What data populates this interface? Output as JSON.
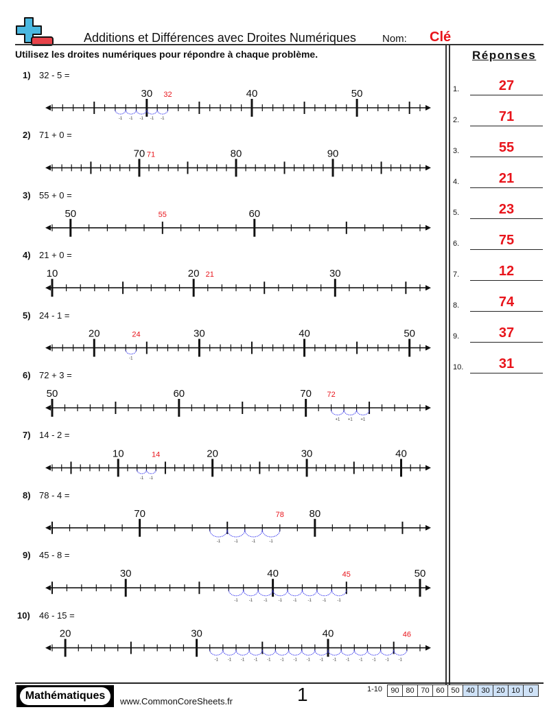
{
  "header": {
    "title": "Additions et Différences avec Droites Numériques",
    "name_label": "Nom:",
    "name_value": "Clé",
    "logo_icon": "plus-minus-logo-icon",
    "logo_colors": {
      "plus": "#4ab8e0",
      "minus": "#e8434a"
    }
  },
  "instructions": "Utilisez les droites numériques pour répondre à chaque problème.",
  "answers_title": "Réponses",
  "answer_color": "#e8141b",
  "jump_color": "#3a3af0",
  "problems": [
    {
      "num": "1)",
      "expr": "32 - 5 =",
      "min": 21,
      "max": 56,
      "start": 32,
      "jumps": -5,
      "start_label": "32",
      "jump_label": "-1",
      "answer": "27"
    },
    {
      "num": "2)",
      "expr": "71 + 0 =",
      "min": 61,
      "max": 99,
      "start": 71,
      "jumps": 0,
      "start_label": "71",
      "jump_label": "",
      "answer": "71"
    },
    {
      "num": "3)",
      "expr": "55 + 0 =",
      "min": 49,
      "max": 69,
      "start": 55,
      "jumps": 0,
      "start_label": "55",
      "jump_label": "",
      "answer": "55"
    },
    {
      "num": "4)",
      "expr": "21 + 0 =",
      "min": 10,
      "max": 36,
      "start": 21,
      "jumps": 0,
      "start_label": "21",
      "jump_label": "",
      "answer": "21"
    },
    {
      "num": "5)",
      "expr": "24 - 1 =",
      "min": 16,
      "max": 51,
      "start": 24,
      "jumps": -1,
      "start_label": "24",
      "jump_label": "-1",
      "answer": "23"
    },
    {
      "num": "6)",
      "expr": "72 + 3 =",
      "min": 50,
      "max": 79,
      "start": 72,
      "jumps": 3,
      "start_label": "72",
      "jump_label": "+1",
      "answer": "75"
    },
    {
      "num": "7)",
      "expr": "14 - 2 =",
      "min": 3,
      "max": 42,
      "start": 14,
      "jumps": -2,
      "start_label": "14",
      "jump_label": "-1",
      "answer": "12"
    },
    {
      "num": "8)",
      "expr": "78 - 4 =",
      "min": 65,
      "max": 86,
      "start": 78,
      "jumps": -4,
      "start_label": "78",
      "jump_label": "-1",
      "answer": "74"
    },
    {
      "num": "9)",
      "expr": "45 - 8 =",
      "min": 25,
      "max": 50,
      "start": 45,
      "jumps": -8,
      "start_label": "45",
      "jump_label": "-1",
      "answer": "37"
    },
    {
      "num": "10)",
      "expr": "46 - 15 =",
      "min": 19,
      "max": 47,
      "start": 46,
      "jumps": -15,
      "start_label": "46",
      "jump_label": "-1",
      "answer": "31"
    }
  ],
  "answer_nums": [
    "1.",
    "2.",
    "3.",
    "4.",
    "5.",
    "6.",
    "7.",
    "8.",
    "9.",
    "10."
  ],
  "footer": {
    "badge": "Mathématiques",
    "url": "www.CommonCoreSheets.fr",
    "page": "1",
    "range": "1-10",
    "scores": [
      "90",
      "80",
      "70",
      "60",
      "50",
      "40",
      "30",
      "20",
      "10",
      "0"
    ],
    "highlight_color": "#cfe2f7"
  }
}
